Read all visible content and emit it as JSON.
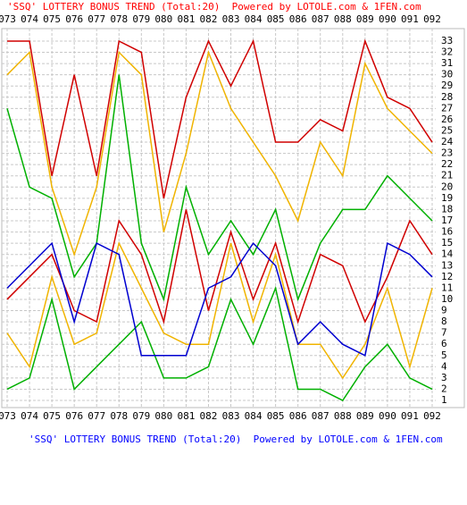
{
  "chart_data": {
    "type": "line",
    "title": "'SSQ' LOTTERY BONUS TREND (Total:20)  Powered by LOTOLE.com & 1FEN.com",
    "title_color": "#ff0000",
    "footer_color": "#0000ff",
    "categories": [
      "073",
      "074",
      "075",
      "076",
      "077",
      "078",
      "079",
      "080",
      "081",
      "082",
      "083",
      "084",
      "085",
      "086",
      "087",
      "088",
      "089",
      "090",
      "091",
      "092"
    ],
    "series": [
      {
        "color": "#d00000",
        "values": [
          33,
          33,
          21,
          30,
          21,
          33,
          32,
          19,
          28,
          33,
          29,
          33,
          24,
          24,
          26,
          25,
          33,
          28,
          27,
          24
        ]
      },
      {
        "color": "#f0b400",
        "values": [
          30,
          32,
          20,
          14,
          20,
          32,
          30,
          16,
          23,
          32,
          27,
          24,
          21,
          17,
          24,
          21,
          31,
          27,
          25,
          23
        ]
      },
      {
        "color": "#00b000",
        "values": [
          27,
          20,
          19,
          12,
          15,
          30,
          15,
          10,
          20,
          14,
          17,
          14,
          18,
          10,
          15,
          18,
          18,
          21,
          19,
          17
        ]
      },
      {
        "color": "#d00000",
        "values": [
          10,
          12,
          14,
          9,
          8,
          17,
          14,
          8,
          18,
          9,
          16,
          10,
          15,
          8,
          14,
          13,
          8,
          12,
          17,
          14
        ]
      },
      {
        "color": "#f0b400",
        "values": [
          7,
          4,
          12,
          6,
          7,
          15,
          11,
          7,
          6,
          6,
          15,
          8,
          14,
          6,
          6,
          3,
          6,
          11,
          4,
          11
        ]
      },
      {
        "color": "#00b000",
        "values": [
          2,
          3,
          10,
          2,
          4,
          6,
          8,
          3,
          3,
          4,
          10,
          6,
          11,
          2,
          2,
          1,
          4,
          6,
          3,
          2
        ]
      },
      {
        "color": "#0000d0",
        "values": [
          11,
          13,
          15,
          8,
          15,
          14,
          5,
          5,
          5,
          11,
          12,
          15,
          13,
          6,
          8,
          6,
          5,
          15,
          14,
          12
        ]
      }
    ],
    "ylim": [
      0,
      34
    ],
    "yticks": [
      1,
      2,
      3,
      4,
      5,
      6,
      7,
      8,
      9,
      10,
      11,
      12,
      13,
      14,
      15,
      16,
      17,
      18,
      19,
      20,
      21,
      22,
      23,
      24,
      25,
      26,
      27,
      28,
      29,
      30,
      31,
      32,
      33
    ],
    "grid": true
  }
}
